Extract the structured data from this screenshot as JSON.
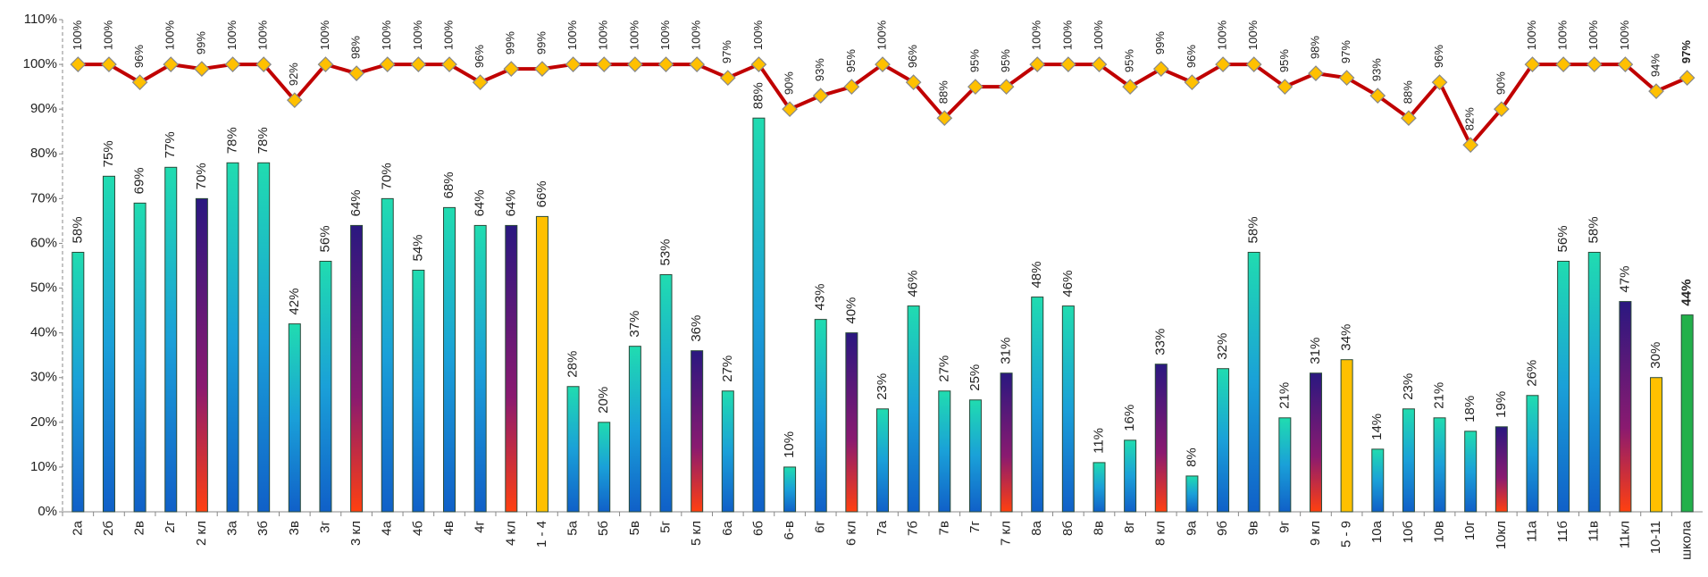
{
  "chart_data": {
    "type": "bar-line",
    "categories": [
      "2а",
      "2б",
      "2в",
      "2г",
      "2 кл",
      "3а",
      "3б",
      "3в",
      "3г",
      "3 кл",
      "4а",
      "4б",
      "4в",
      "4г",
      "4 кл",
      "1 - 4",
      "5а",
      "5б",
      "5в",
      "5г",
      "5 кл",
      "6а",
      "6б",
      "6-в",
      "6г",
      "6 кл",
      "7а",
      "7б",
      "7в",
      "7г",
      "7 кл",
      "8а",
      "8б",
      "8в",
      "8г",
      "8 кл",
      "9а",
      "9б",
      "9в",
      "9г",
      "9 кл",
      "5 - 9",
      "10а",
      "10б",
      "10в",
      "10г",
      "10кл",
      "11а",
      "11б",
      "11в",
      "11кл",
      "10-11",
      "школа"
    ],
    "series": [
      {
        "type": "bar",
        "values": [
          58,
          75,
          69,
          77,
          70,
          78,
          78,
          42,
          56,
          64,
          70,
          54,
          68,
          64,
          64,
          66,
          28,
          20,
          37,
          53,
          36,
          27,
          88,
          10,
          43,
          40,
          23,
          46,
          27,
          25,
          31,
          48,
          46,
          11,
          16,
          33,
          8,
          32,
          58,
          21,
          31,
          34,
          14,
          23,
          21,
          18,
          19,
          26,
          56,
          58,
          47,
          30,
          44
        ],
        "value_labels": [
          "58%",
          "75%",
          "69%",
          "77%",
          "70%",
          "78%",
          "78%",
          "42%",
          "56%",
          "64%",
          "70%",
          "54%",
          "68%",
          "64%",
          "64%",
          "66%",
          "28%",
          "20%",
          "37%",
          "53%",
          "36%",
          "27%",
          "88%",
          "10%",
          "43%",
          "40%",
          "23%",
          "46%",
          "27%",
          "25%",
          "31%",
          "48%",
          "46%",
          "11%",
          "16%",
          "33%",
          "8%",
          "32%",
          "58%",
          "21%",
          "31%",
          "34%",
          "14%",
          "23%",
          "21%",
          "18%",
          "19%",
          "26%",
          "56%",
          "58%",
          "47%",
          "30%",
          "44%"
        ],
        "colors": [
          "#20dcb0",
          "#20dcb0",
          "#20dcb0",
          "#20dcb0",
          "#2a1880",
          "#20dcb0",
          "#20dcb0",
          "#20dcb0",
          "#20dcb0",
          "#2a1880",
          "#20dcb0",
          "#20dcb0",
          "#20dcb0",
          "#20dcb0",
          "#2a1880",
          "#ffc000",
          "#20dcb0",
          "#20dcb0",
          "#20dcb0",
          "#20dcb0",
          "#2a1880",
          "#20dcb0",
          "#20dcb0",
          "#20dcb0",
          "#20dcb0",
          "#2a1880",
          "#20dcb0",
          "#20dcb0",
          "#20dcb0",
          "#20dcb0",
          "#2a1880",
          "#20dcb0",
          "#20dcb0",
          "#20dcb0",
          "#20dcb0",
          "#2a1880",
          "#20dcb0",
          "#20dcb0",
          "#20dcb0",
          "#20dcb0",
          "#2a1880",
          "#ffc000",
          "#20dcb0",
          "#20dcb0",
          "#20dcb0",
          "#20dcb0",
          "#2a1880",
          "#20dcb0",
          "#20dcb0",
          "#20dcb0",
          "#2a1880",
          "#ffc000",
          "#22b04a"
        ]
      },
      {
        "type": "line",
        "color": "#c00000",
        "marker_color": "#ffc000",
        "values": [
          100,
          100,
          96,
          100,
          99,
          100,
          100,
          92,
          100,
          98,
          100,
          100,
          100,
          96,
          99,
          99,
          100,
          100,
          100,
          100,
          100,
          97,
          100,
          90,
          93,
          95,
          100,
          96,
          88,
          95,
          95,
          100,
          100,
          100,
          95,
          99,
          96,
          100,
          100,
          95,
          98,
          97,
          93,
          88,
          96,
          82,
          90,
          100,
          100,
          100,
          100,
          94,
          97
        ],
        "value_labels": [
          "100%",
          "100%",
          "96%",
          "100%",
          "99%",
          "100%",
          "100%",
          "92%",
          "100%",
          "98%",
          "100%",
          "100%",
          "100%",
          "96%",
          "99%",
          "99%",
          "100%",
          "100%",
          "100%",
          "100%",
          "100%",
          "97%",
          "100%",
          "90%",
          "93%",
          "95%",
          "100%",
          "96%",
          "88%",
          "95%",
          "95%",
          "100%",
          "100%",
          "100%",
          "95%",
          "99%",
          "96%",
          "100%",
          "100%",
          "95%",
          "98%",
          "97%",
          "93%",
          "88%",
          "96%",
          "82%",
          "90%",
          "100%",
          "100%",
          "100%",
          "100%",
          "94%",
          "97%"
        ]
      }
    ],
    "highlight_color": "#c00000",
    "ylim": [
      0,
      110
    ],
    "yticks": [
      {
        "value": 0,
        "label": "0%"
      },
      {
        "value": 10,
        "label": "10%"
      },
      {
        "value": 20,
        "label": "20%"
      },
      {
        "value": 30,
        "label": "30%"
      },
      {
        "value": 40,
        "label": "40%"
      },
      {
        "value": 50,
        "label": "50%"
      },
      {
        "value": 60,
        "label": "60%"
      },
      {
        "value": 70,
        "label": "70%"
      },
      {
        "value": 80,
        "label": "80%"
      },
      {
        "value": 90,
        "label": "90%"
      },
      {
        "value": 100,
        "label": "100%"
      },
      {
        "value": 110,
        "label": "110%"
      }
    ],
    "grid": false
  }
}
